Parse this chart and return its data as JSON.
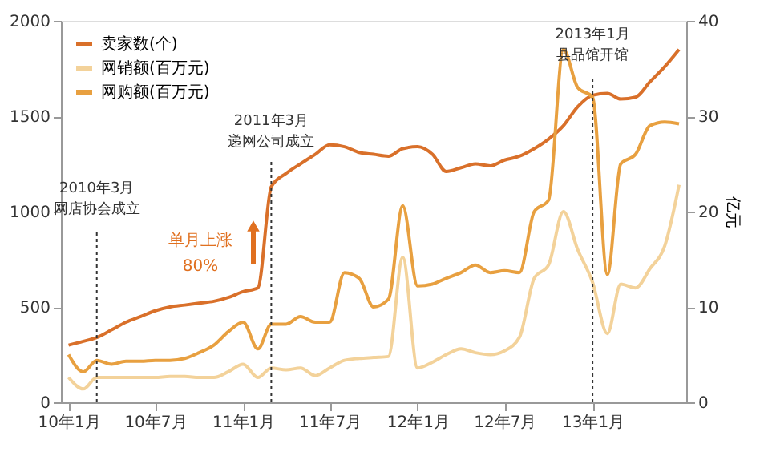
{
  "chart_data": {
    "type": "line",
    "y2label": "亿元",
    "x": [
      "2010-01",
      "2010-02",
      "2010-03",
      "2010-04",
      "2010-05",
      "2010-06",
      "2010-07",
      "2010-08",
      "2010-09",
      "2010-10",
      "2010-11",
      "2010-12",
      "2011-01",
      "2011-02",
      "2011-03",
      "2011-04",
      "2011-05",
      "2011-06",
      "2011-07",
      "2011-08",
      "2011-09",
      "2011-10",
      "2011-11",
      "2011-12",
      "2012-01",
      "2012-02",
      "2012-03",
      "2012-04",
      "2012-05",
      "2012-06",
      "2012-07",
      "2012-08",
      "2012-09",
      "2012-10",
      "2012-11",
      "2012-12",
      "2013-01",
      "2013-02",
      "2013-03",
      "2013-04",
      "2013-05",
      "2013-06",
      "2013-07"
    ],
    "xlim": [
      "2009-12-16",
      "2013-07-16"
    ],
    "xticks": [
      {
        "value": "2010-01",
        "label": "10年1月"
      },
      {
        "value": "2010-07",
        "label": "10年7月"
      },
      {
        "value": "2011-01",
        "label": "11年1月"
      },
      {
        "value": "2011-07",
        "label": "11年7月"
      },
      {
        "value": "2012-01",
        "label": "12年1月"
      },
      {
        "value": "2012-07",
        "label": "12年7月"
      },
      {
        "value": "2013-01",
        "label": "13年1月"
      }
    ],
    "ylim": [
      0,
      2000
    ],
    "yticks": [
      0,
      500,
      1000,
      1500,
      2000
    ],
    "y2lim": [
      0,
      40
    ],
    "y2ticks": [
      0,
      10,
      20,
      30,
      40
    ],
    "series": [
      {
        "name": "卖家数(个)",
        "color": "#d9702a",
        "values": [
          300,
          320,
          340,
          380,
          420,
          450,
          480,
          500,
          510,
          520,
          530,
          550,
          580,
          600,
          1130,
          1200,
          1250,
          1300,
          1350,
          1340,
          1310,
          1300,
          1290,
          1330,
          1340,
          1300,
          1210,
          1230,
          1250,
          1240,
          1270,
          1290,
          1330,
          1380,
          1450,
          1550,
          1610,
          1620,
          1590,
          1600,
          1680,
          1760,
          1850
        ]
      },
      {
        "name": "网销额(百万元)",
        "color": "#f3d29a",
        "axis": "y2",
        "values": [
          2.6,
          1.4,
          2.6,
          2.6,
          2.6,
          2.6,
          2.6,
          2.7,
          2.7,
          2.6,
          2.6,
          3.2,
          4.0,
          2.6,
          3.6,
          3.4,
          3.6,
          2.8,
          3.6,
          4.4,
          4.6,
          4.7,
          4.8,
          15.2,
          3.6,
          4.2,
          5.0,
          5.6,
          5.2,
          5.0,
          5.4,
          6.8,
          13.0,
          14.4,
          20.0,
          16.0,
          12.6,
          7.2,
          12.4,
          12.0,
          14.0,
          16.4,
          22.8
        ]
      },
      {
        "name": "网购额(百万元)",
        "color": "#e8a040",
        "axis": "y2",
        "values": [
          5.0,
          3.2,
          4.4,
          4.0,
          4.3,
          4.3,
          4.4,
          4.4,
          4.6,
          5.2,
          6.0,
          7.4,
          8.4,
          5.6,
          8.2,
          8.2,
          9.0,
          8.4,
          8.4,
          13.6,
          13.0,
          10.0,
          10.8,
          20.6,
          12.2,
          12.4,
          13.0,
          13.6,
          14.4,
          13.6,
          13.8,
          13.6,
          20.0,
          21.2,
          37.0,
          33.0,
          32.0,
          13.4,
          25.0,
          26.0,
          29.0,
          29.4,
          29.2
        ]
      }
    ],
    "ref_lines": [
      {
        "axis": "x",
        "value": "2010-03",
        "label": "2010年3月网店协会成立",
        "color": "#333333",
        "line_style": "dotted"
      },
      {
        "axis": "x",
        "value": "2011-03",
        "label": "2011年3月递网公司成立",
        "color": "#333333",
        "line_style": "dotted"
      },
      {
        "axis": "x",
        "value": "2013-01",
        "label": "2013年1月县品馆开馆",
        "color": "#333333",
        "line_style": "dotted"
      }
    ],
    "annotations": [
      "单月上涨80%"
    ],
    "legend": "top left",
    "grid": false,
    "line_style": "solid",
    "marker": "none"
  }
}
